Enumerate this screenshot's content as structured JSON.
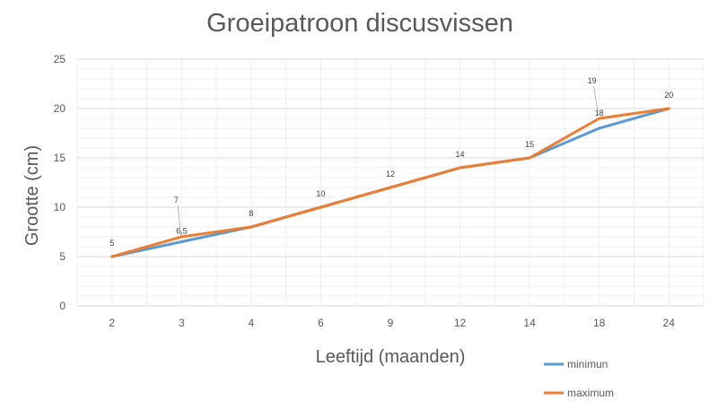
{
  "chart_data": {
    "type": "line",
    "title": "Groeipatroon discusvissen",
    "xlabel": "Leeftijd (maanden)",
    "ylabel": "Grootte (cm)",
    "categories": [
      "2",
      "3",
      "4",
      "6",
      "9",
      "12",
      "14",
      "18",
      "24"
    ],
    "ylim": [
      0,
      25
    ],
    "yticks": [
      0,
      5,
      10,
      15,
      20,
      25
    ],
    "grid": true,
    "legend_position": "bottom-right",
    "series": [
      {
        "name": "minimun",
        "color": "#5b9bd5",
        "values": [
          5,
          6.5,
          8,
          10,
          12,
          14,
          15,
          18,
          20
        ]
      },
      {
        "name": "maximum",
        "color": "#ed7d31",
        "values": [
          5,
          7,
          8,
          10,
          12,
          14,
          15,
          19,
          20
        ]
      }
    ],
    "data_labels": [
      "5",
      "6,5",
      "7",
      "8",
      "10",
      "12",
      "14",
      "15",
      "18",
      "19",
      "20"
    ]
  }
}
